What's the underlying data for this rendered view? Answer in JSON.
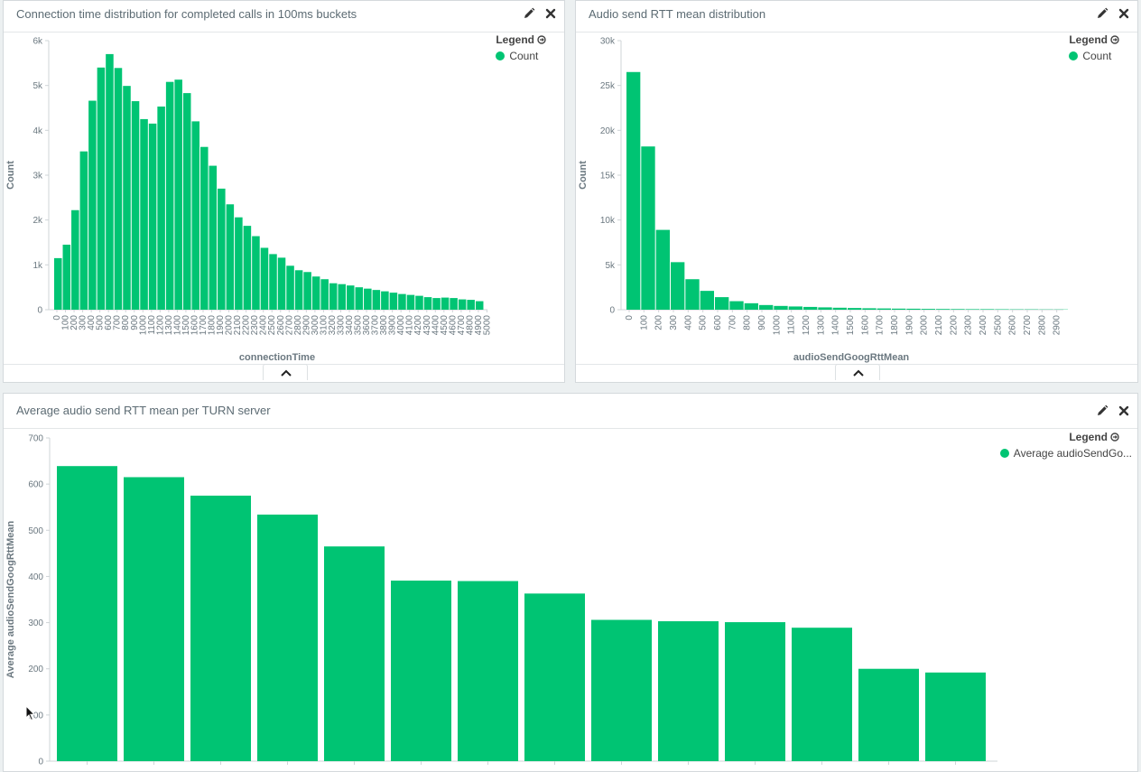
{
  "colors": {
    "bar": "#00c473",
    "axis_text": "#6b7880",
    "title_text": "#5c6b73",
    "panel_bg": "#ffffff",
    "page_bg": "#ecf0f1"
  },
  "icons": {
    "edit": "pencil-icon",
    "remove": "close-icon",
    "legend_toggle": "circle-arrow-right-icon",
    "collapse": "chevron-up-icon"
  },
  "panels": [
    {
      "title": "Connection time distribution for completed calls in 100ms buckets",
      "legend": {
        "title": "Legend",
        "items": [
          "Count"
        ]
      },
      "chart_data": {
        "type": "bar",
        "xlabel": "connectionTime",
        "ylabel": "Count",
        "ylim": [
          0,
          6000
        ],
        "y_ticks": [
          0,
          1000,
          2000,
          3000,
          4000,
          5000,
          6000
        ],
        "y_tick_labels": [
          "0",
          "1k",
          "2k",
          "3k",
          "4k",
          "5k",
          "6k"
        ],
        "x_tick_labels": [
          "0",
          "100",
          "200",
          "300",
          "400",
          "500",
          "600",
          "700",
          "800",
          "900",
          "1000",
          "1100",
          "1200",
          "1300",
          "1400",
          "1500",
          "1600",
          "1700",
          "1800",
          "1900",
          "2000",
          "2100",
          "2200",
          "2300",
          "2400",
          "2500",
          "2600",
          "2700",
          "2800",
          "2900",
          "3000",
          "3100",
          "3200",
          "3300",
          "3400",
          "3500",
          "3600",
          "3700",
          "3800",
          "3900",
          "4000",
          "4100",
          "4200",
          "4300",
          "4400",
          "4500",
          "4600",
          "4700",
          "4800",
          "4900",
          "5000"
        ],
        "x": [
          0,
          100,
          200,
          300,
          400,
          500,
          600,
          700,
          800,
          900,
          1000,
          1100,
          1200,
          1300,
          1400,
          1500,
          1600,
          1700,
          1800,
          1900,
          2000,
          2100,
          2200,
          2300,
          2400,
          2500,
          2600,
          2700,
          2800,
          2900,
          3000,
          3100,
          3200,
          3300,
          3400,
          3500,
          3600,
          3700,
          3800,
          3900,
          4000,
          4100,
          4200,
          4300,
          4400,
          4500,
          4600,
          4700,
          4800,
          4900
        ],
        "values": [
          1150,
          1450,
          2220,
          3530,
          4660,
          5400,
          5700,
          5390,
          4990,
          4650,
          4250,
          4150,
          4530,
          5080,
          5130,
          4830,
          4200,
          3630,
          3210,
          2700,
          2350,
          2060,
          1870,
          1640,
          1380,
          1240,
          1160,
          980,
          880,
          840,
          740,
          680,
          590,
          570,
          540,
          500,
          470,
          440,
          410,
          380,
          350,
          330,
          310,
          280,
          260,
          270,
          260,
          230,
          220,
          190
        ]
      }
    },
    {
      "title": "Audio send RTT mean distribution",
      "legend": {
        "title": "Legend",
        "items": [
          "Count"
        ]
      },
      "chart_data": {
        "type": "bar",
        "xlabel": "audioSendGoogRttMean",
        "ylabel": "Count",
        "ylim": [
          0,
          30000
        ],
        "y_ticks": [
          0,
          5000,
          10000,
          15000,
          20000,
          25000,
          30000
        ],
        "y_tick_labels": [
          "0",
          "5k",
          "10k",
          "15k",
          "20k",
          "25k",
          "30k"
        ],
        "x_tick_labels": [
          "0",
          "100",
          "200",
          "300",
          "400",
          "500",
          "600",
          "700",
          "800",
          "900",
          "1000",
          "1100",
          "1200",
          "1300",
          "1400",
          "1500",
          "1600",
          "1700",
          "1800",
          "1900",
          "2000",
          "2100",
          "2200",
          "2300",
          "2400",
          "2500",
          "2600",
          "2700",
          "2800",
          "2900"
        ],
        "x": [
          0,
          100,
          200,
          300,
          400,
          500,
          600,
          700,
          800,
          900,
          1000,
          1100,
          1200,
          1300,
          1400,
          1500,
          1600,
          1700,
          1800,
          1900,
          2000,
          2100,
          2200,
          2300,
          2400,
          2500,
          2600,
          2700,
          2800,
          2900
        ],
        "values": [
          26500,
          18200,
          8900,
          5300,
          3400,
          2100,
          1400,
          950,
          720,
          520,
          420,
          360,
          310,
          260,
          220,
          190,
          160,
          140,
          120,
          110,
          90,
          80,
          70,
          60,
          60,
          50,
          40,
          40,
          30,
          30
        ]
      }
    },
    {
      "title": "Average audio send RTT mean per TURN server",
      "legend": {
        "title": "Legend",
        "items": [
          "Average audioSendGo..."
        ]
      },
      "chart_data": {
        "type": "bar",
        "xlabel": "",
        "ylabel": "Average audioSendGoogRttMean",
        "ylim": [
          0,
          700
        ],
        "y_ticks": [
          0,
          100,
          200,
          300,
          400,
          500,
          600,
          700
        ],
        "y_tick_labels": [
          "0",
          "100",
          "200",
          "300",
          "400",
          "500",
          "600",
          "700"
        ],
        "values": [
          639,
          615,
          575,
          534,
          465,
          391,
          390,
          363,
          306,
          303,
          301,
          289,
          200,
          192
        ]
      }
    }
  ]
}
